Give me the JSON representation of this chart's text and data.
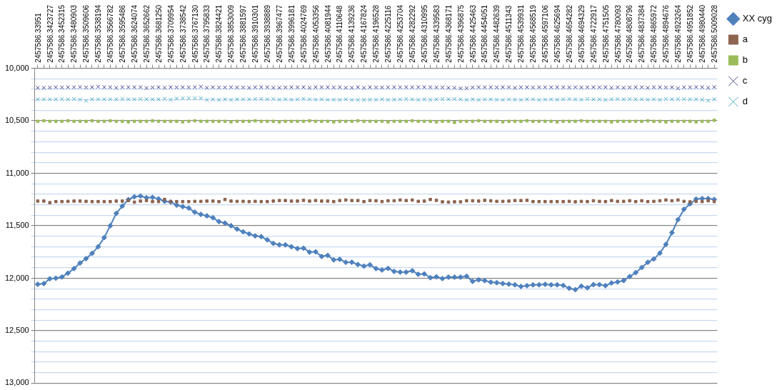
{
  "chart_data": {
    "type": "line",
    "categories": [
      "2457586.33951",
      null,
      "2457586.3423727",
      null,
      "2457586.3452315",
      null,
      "2457586.3480903",
      null,
      "2457586.3509606",
      null,
      "2457586.3538194",
      null,
      "2457586.3566782",
      null,
      "2457586.3595486",
      null,
      "2457586.3624074",
      null,
      "2457586.3652662",
      null,
      "2457586.3681250",
      null,
      "2457586.3709954",
      null,
      "2457586.3738542",
      null,
      "2457586.3767130",
      null,
      "2457586.3795833",
      null,
      "2457586.3824421",
      null,
      "2457586.3853009",
      null,
      "2457586.3881597",
      null,
      "2457586.3910301",
      null,
      "2457586.3938889",
      null,
      "2457586.3967477",
      null,
      "2457586.3996181",
      null,
      "2457586.4024769",
      null,
      "2457586.4053356",
      null,
      "2457586.4081944",
      null,
      "2457586.4110648",
      null,
      "2457586.4139236",
      null,
      "2457586.4167824",
      null,
      "2457586.4196528",
      null,
      "2457586.4225116",
      null,
      "2457586.4253704",
      null,
      "2457586.4282292",
      null,
      "2457586.4310995",
      null,
      "2457586.4339583",
      null,
      "2457586.4368171",
      null,
      "2457586.4396875",
      null,
      "2457586.4425463",
      null,
      "2457586.4454051",
      null,
      "2457586.4482639",
      null,
      "2457586.4511343",
      null,
      "2457586.4539931",
      null,
      "2457586.4568519",
      null,
      "2457586.4597106",
      null,
      "2457586.4625694",
      null,
      "2457586.4654282",
      null,
      "2457586.4694329",
      null,
      "2457586.4722917",
      null,
      "2457586.4751505",
      null,
      "2457586.4780093",
      null,
      "2457586.4808796",
      null,
      "2457586.4837384",
      null,
      "2457586.4865972",
      null,
      "2457586.4894676",
      null,
      "2457586.4923264",
      null,
      "2457586.4951852",
      null,
      "2457586.4980440",
      null,
      "2457586.5009028"
    ],
    "ylim": [
      13000,
      10000
    ],
    "yticks": [
      {
        "value": 10000,
        "label": "10,000"
      },
      {
        "value": 10100,
        "label": null
      },
      {
        "value": 10200,
        "label": null
      },
      {
        "value": 10300,
        "label": null
      },
      {
        "value": 10400,
        "label": null
      },
      {
        "value": 10500,
        "label": "10,500"
      },
      {
        "value": 10600,
        "label": null
      },
      {
        "value": 10700,
        "label": null
      },
      {
        "value": 10800,
        "label": null
      },
      {
        "value": 10900,
        "label": null
      },
      {
        "value": 11000,
        "label": "11,000"
      },
      {
        "value": 11100,
        "label": null
      },
      {
        "value": 11200,
        "label": null
      },
      {
        "value": 11300,
        "label": null
      },
      {
        "value": 11400,
        "label": null
      },
      {
        "value": 11500,
        "label": "11,500"
      },
      {
        "value": 11600,
        "label": null
      },
      {
        "value": 11700,
        "label": null
      },
      {
        "value": 11800,
        "label": null
      },
      {
        "value": 11900,
        "label": null
      },
      {
        "value": 12000,
        "label": "12,000"
      },
      {
        "value": 12100,
        "label": null
      },
      {
        "value": 12200,
        "label": null
      },
      {
        "value": 12300,
        "label": null
      },
      {
        "value": 12400,
        "label": null
      },
      {
        "value": 12500,
        "label": "12,500"
      },
      {
        "value": 12600,
        "label": null
      },
      {
        "value": 12700,
        "label": null
      },
      {
        "value": 12800,
        "label": null
      },
      {
        "value": 12900,
        "label": null
      },
      {
        "value": 13000,
        "label": "13,000"
      }
    ],
    "grid": "y",
    "legend": "right",
    "line_style": "solid",
    "series": [
      {
        "name": "XX cyg",
        "type": "line",
        "marker": "diamond",
        "color": "#4f81bd",
        "values": [
          12058,
          12051,
          12005,
          12000,
          11988,
          11952,
          11908,
          11855,
          11813,
          11763,
          11700,
          11613,
          11500,
          11382,
          11313,
          11251,
          11224,
          11217,
          11233,
          11230,
          11244,
          11267,
          11274,
          11304,
          11318,
          11332,
          11371,
          11392,
          11406,
          11424,
          11461,
          11475,
          11500,
          11532,
          11558,
          11578,
          11597,
          11604,
          11634,
          11668,
          11682,
          11682,
          11700,
          11717,
          11714,
          11751,
          11749,
          11793,
          11783,
          11825,
          11820,
          11848,
          11848,
          11869,
          11885,
          11873,
          11908,
          11922,
          11906,
          11935,
          11942,
          11942,
          11929,
          11962,
          11959,
          11995,
          11987,
          12003,
          11990,
          11990,
          11990,
          11982,
          12030,
          12015,
          12023,
          12038,
          12043,
          12051,
          12056,
          12063,
          12079,
          12071,
          12063,
          12063,
          12058,
          12063,
          12063,
          12069,
          12096,
          12109,
          12076,
          12091,
          12061,
          12061,
          12071,
          12046,
          12036,
          12023,
          11985,
          11947,
          11898,
          11848,
          11817,
          11761,
          11678,
          11566,
          11442,
          11343,
          11292,
          11246,
          11241,
          11241,
          11249
        ]
      },
      {
        "name": "a",
        "type": "scatter",
        "marker": "square",
        "color": "#8c6450",
        "values": [
          11265,
          11265,
          11280,
          11270,
          11270,
          11268,
          11265,
          11265,
          11268,
          11270,
          11270,
          11270,
          11270,
          11265,
          11265,
          11260,
          11275,
          11265,
          11260,
          11270,
          11270,
          11250,
          11270,
          11270,
          11270,
          11270,
          11268,
          11268,
          11265,
          11265,
          11270,
          11250,
          11265,
          11268,
          11268,
          11270,
          11268,
          11270,
          11270,
          11265,
          11260,
          11260,
          11265,
          11265,
          11258,
          11265,
          11260,
          11265,
          11265,
          11270,
          11260,
          11255,
          11260,
          11260,
          11270,
          11260,
          11262,
          11270,
          11262,
          11262,
          11255,
          11260,
          11255,
          11268,
          11265,
          11250,
          11258,
          11272,
          11275,
          11272,
          11272,
          11262,
          11262,
          11265,
          11258,
          11262,
          11268,
          11268,
          11265,
          11260,
          11260,
          11258,
          11270,
          11270,
          11270,
          11270,
          11270,
          11270,
          11268,
          11272,
          11268,
          11270,
          11262,
          11268,
          11270,
          11260,
          11268,
          11268,
          11262,
          11270,
          11262,
          11270,
          11268,
          11262,
          11255,
          11262,
          11255,
          11268,
          11272,
          11268,
          11270,
          11262,
          11270
        ]
      },
      {
        "name": "b",
        "type": "scatter",
        "marker": "square",
        "color": "#9bbb59",
        "values": [
          10505,
          10500,
          10505,
          10505,
          10505,
          10500,
          10505,
          10505,
          10505,
          10500,
          10505,
          10505,
          10500,
          10505,
          10505,
          10510,
          10505,
          10505,
          10505,
          10500,
          10505,
          10505,
          10505,
          10505,
          10510,
          10505,
          10500,
          10505,
          10505,
          10505,
          10505,
          10505,
          10510,
          10505,
          10505,
          10505,
          10500,
          10505,
          10505,
          10505,
          10510,
          10505,
          10505,
          10505,
          10505,
          10500,
          10505,
          10505,
          10505,
          10510,
          10505,
          10505,
          10505,
          10500,
          10505,
          10505,
          10505,
          10505,
          10510,
          10505,
          10505,
          10505,
          10500,
          10505,
          10505,
          10505,
          10510,
          10505,
          10505,
          10515,
          10505,
          10505,
          10505,
          10500,
          10505,
          10505,
          10505,
          10510,
          10505,
          10505,
          10505,
          10500,
          10505,
          10505,
          10505,
          10505,
          10510,
          10505,
          10505,
          10505,
          10500,
          10505,
          10505,
          10505,
          10505,
          10510,
          10505,
          10505,
          10505,
          10505,
          10505,
          10500,
          10505,
          10505,
          10510,
          10505,
          10505,
          10505,
          10505,
          10510,
          10505,
          10505,
          10495
        ]
      },
      {
        "name": "c",
        "type": "scatter",
        "marker": "cross",
        "color": "#4b4b8f",
        "values": [
          10185,
          10185,
          10183,
          10180,
          10182,
          10180,
          10180,
          10178,
          10182,
          10180,
          10175,
          10180,
          10180,
          10185,
          10180,
          10180,
          10180,
          10180,
          10188,
          10182,
          10180,
          10185,
          10180,
          10182,
          10180,
          10182,
          10180,
          10175,
          10185,
          10180,
          10182,
          10182,
          10180,
          10182,
          10182,
          10185,
          10180,
          10180,
          10180,
          10185,
          10185,
          10182,
          10180,
          10180,
          10180,
          10185,
          10180,
          10180,
          10180,
          10182,
          10180,
          10185,
          10185,
          10180,
          10185,
          10180,
          10182,
          10182,
          10180,
          10180,
          10180,
          10180,
          10180,
          10180,
          10180,
          10180,
          10182,
          10182,
          10185,
          10185,
          10190,
          10190,
          10182,
          10180,
          10180,
          10180,
          10182,
          10180,
          10180,
          10185,
          10180,
          10180,
          10182,
          10180,
          10180,
          10180,
          10180,
          10180,
          10182,
          10180,
          10182,
          10180,
          10180,
          10180,
          10180,
          10185,
          10180,
          10185,
          10182,
          10180,
          10180,
          10185,
          10180,
          10180,
          10182,
          10180,
          10190,
          10180,
          10180,
          10178,
          10180,
          10185,
          10178
        ]
      },
      {
        "name": "d",
        "type": "scatter",
        "marker": "cross",
        "color": "#4bacc6",
        "values": [
          10295,
          10295,
          10295,
          10295,
          10292,
          10295,
          10292,
          10298,
          10310,
          10295,
          10295,
          10295,
          10295,
          10295,
          10292,
          10295,
          10295,
          10292,
          10295,
          10295,
          10295,
          10290,
          10298,
          10288,
          10285,
          10285,
          10285,
          10285,
          10300,
          10295,
          10300,
          10295,
          10300,
          10295,
          10295,
          10295,
          10292,
          10292,
          10295,
          10292,
          10298,
          10295,
          10298,
          10295,
          10290,
          10295,
          10298,
          10295,
          10300,
          10298,
          10300,
          10295,
          10300,
          10300,
          10300,
          10298,
          10300,
          10295,
          10300,
          10298,
          10295,
          10292,
          10295,
          10300,
          10295,
          10300,
          10295,
          10292,
          10295,
          10292,
          10295,
          10300,
          10295,
          10300,
          10295,
          10295,
          10298,
          10300,
          10295,
          10298,
          10300,
          10295,
          10295,
          10300,
          10298,
          10295,
          10298,
          10295,
          10292,
          10295,
          10298,
          10292,
          10295,
          10295,
          10300,
          10295,
          10292,
          10295,
          10292,
          10295,
          10295,
          10298,
          10295,
          10300,
          10292,
          10295,
          10292,
          10292,
          10295,
          10295,
          10300,
          10308,
          10295
        ]
      }
    ]
  }
}
